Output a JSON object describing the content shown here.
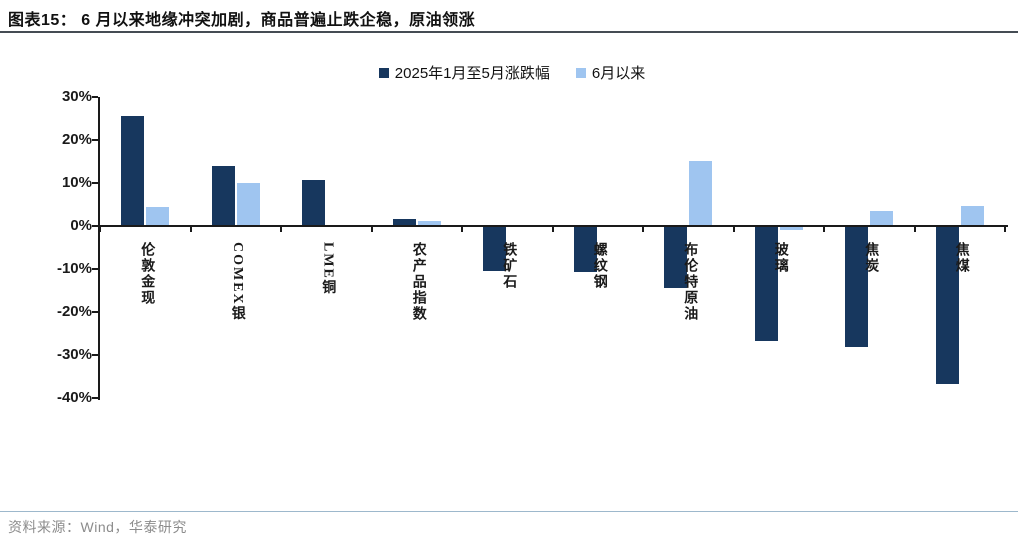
{
  "header": {
    "title": "图表15： 6 月以来地缘冲突加剧，商品普遍止跌企稳，原油领涨"
  },
  "footer": {
    "source": "资料来源：Wind，华泰研究"
  },
  "colors": {
    "series_dark": "#17375E",
    "series_light": "#9FC5F0",
    "axis": "#1a1a1a",
    "title_rule": "#454c54",
    "footer_rule": "#9db8cc",
    "footer_text": "#8c8c8c"
  },
  "chart_data": {
    "type": "bar",
    "title": "",
    "categories": [
      "伦敦金现",
      "COMEX银",
      "LME铜",
      "农产品指数",
      "铁矿石",
      "螺纹钢",
      "布伦特原油",
      "玻璃",
      "焦炭",
      "焦煤"
    ],
    "series": [
      {
        "name": "2025年1月至5月涨跌幅",
        "color": "#17375E",
        "values": [
          25.4,
          13.8,
          10.5,
          1.5,
          -10.3,
          -10.5,
          -14.3,
          -26.4,
          -28.0,
          -36.4
        ]
      },
      {
        "name": "6月以来",
        "color": "#9FC5F0",
        "values": [
          4.2,
          9.8,
          0.0,
          1.0,
          0.0,
          0.0,
          15.0,
          -0.7,
          3.3,
          4.4
        ]
      }
    ],
    "xlabel": "",
    "ylabel": "",
    "ylim": [
      -40,
      30
    ],
    "ytick_step": 10,
    "ytick_labels": [
      "30%",
      "20%",
      "10%",
      "0%",
      "-10%",
      "-20%",
      "-30%",
      "-40%"
    ],
    "grid": false,
    "legend_position": "top-center"
  }
}
